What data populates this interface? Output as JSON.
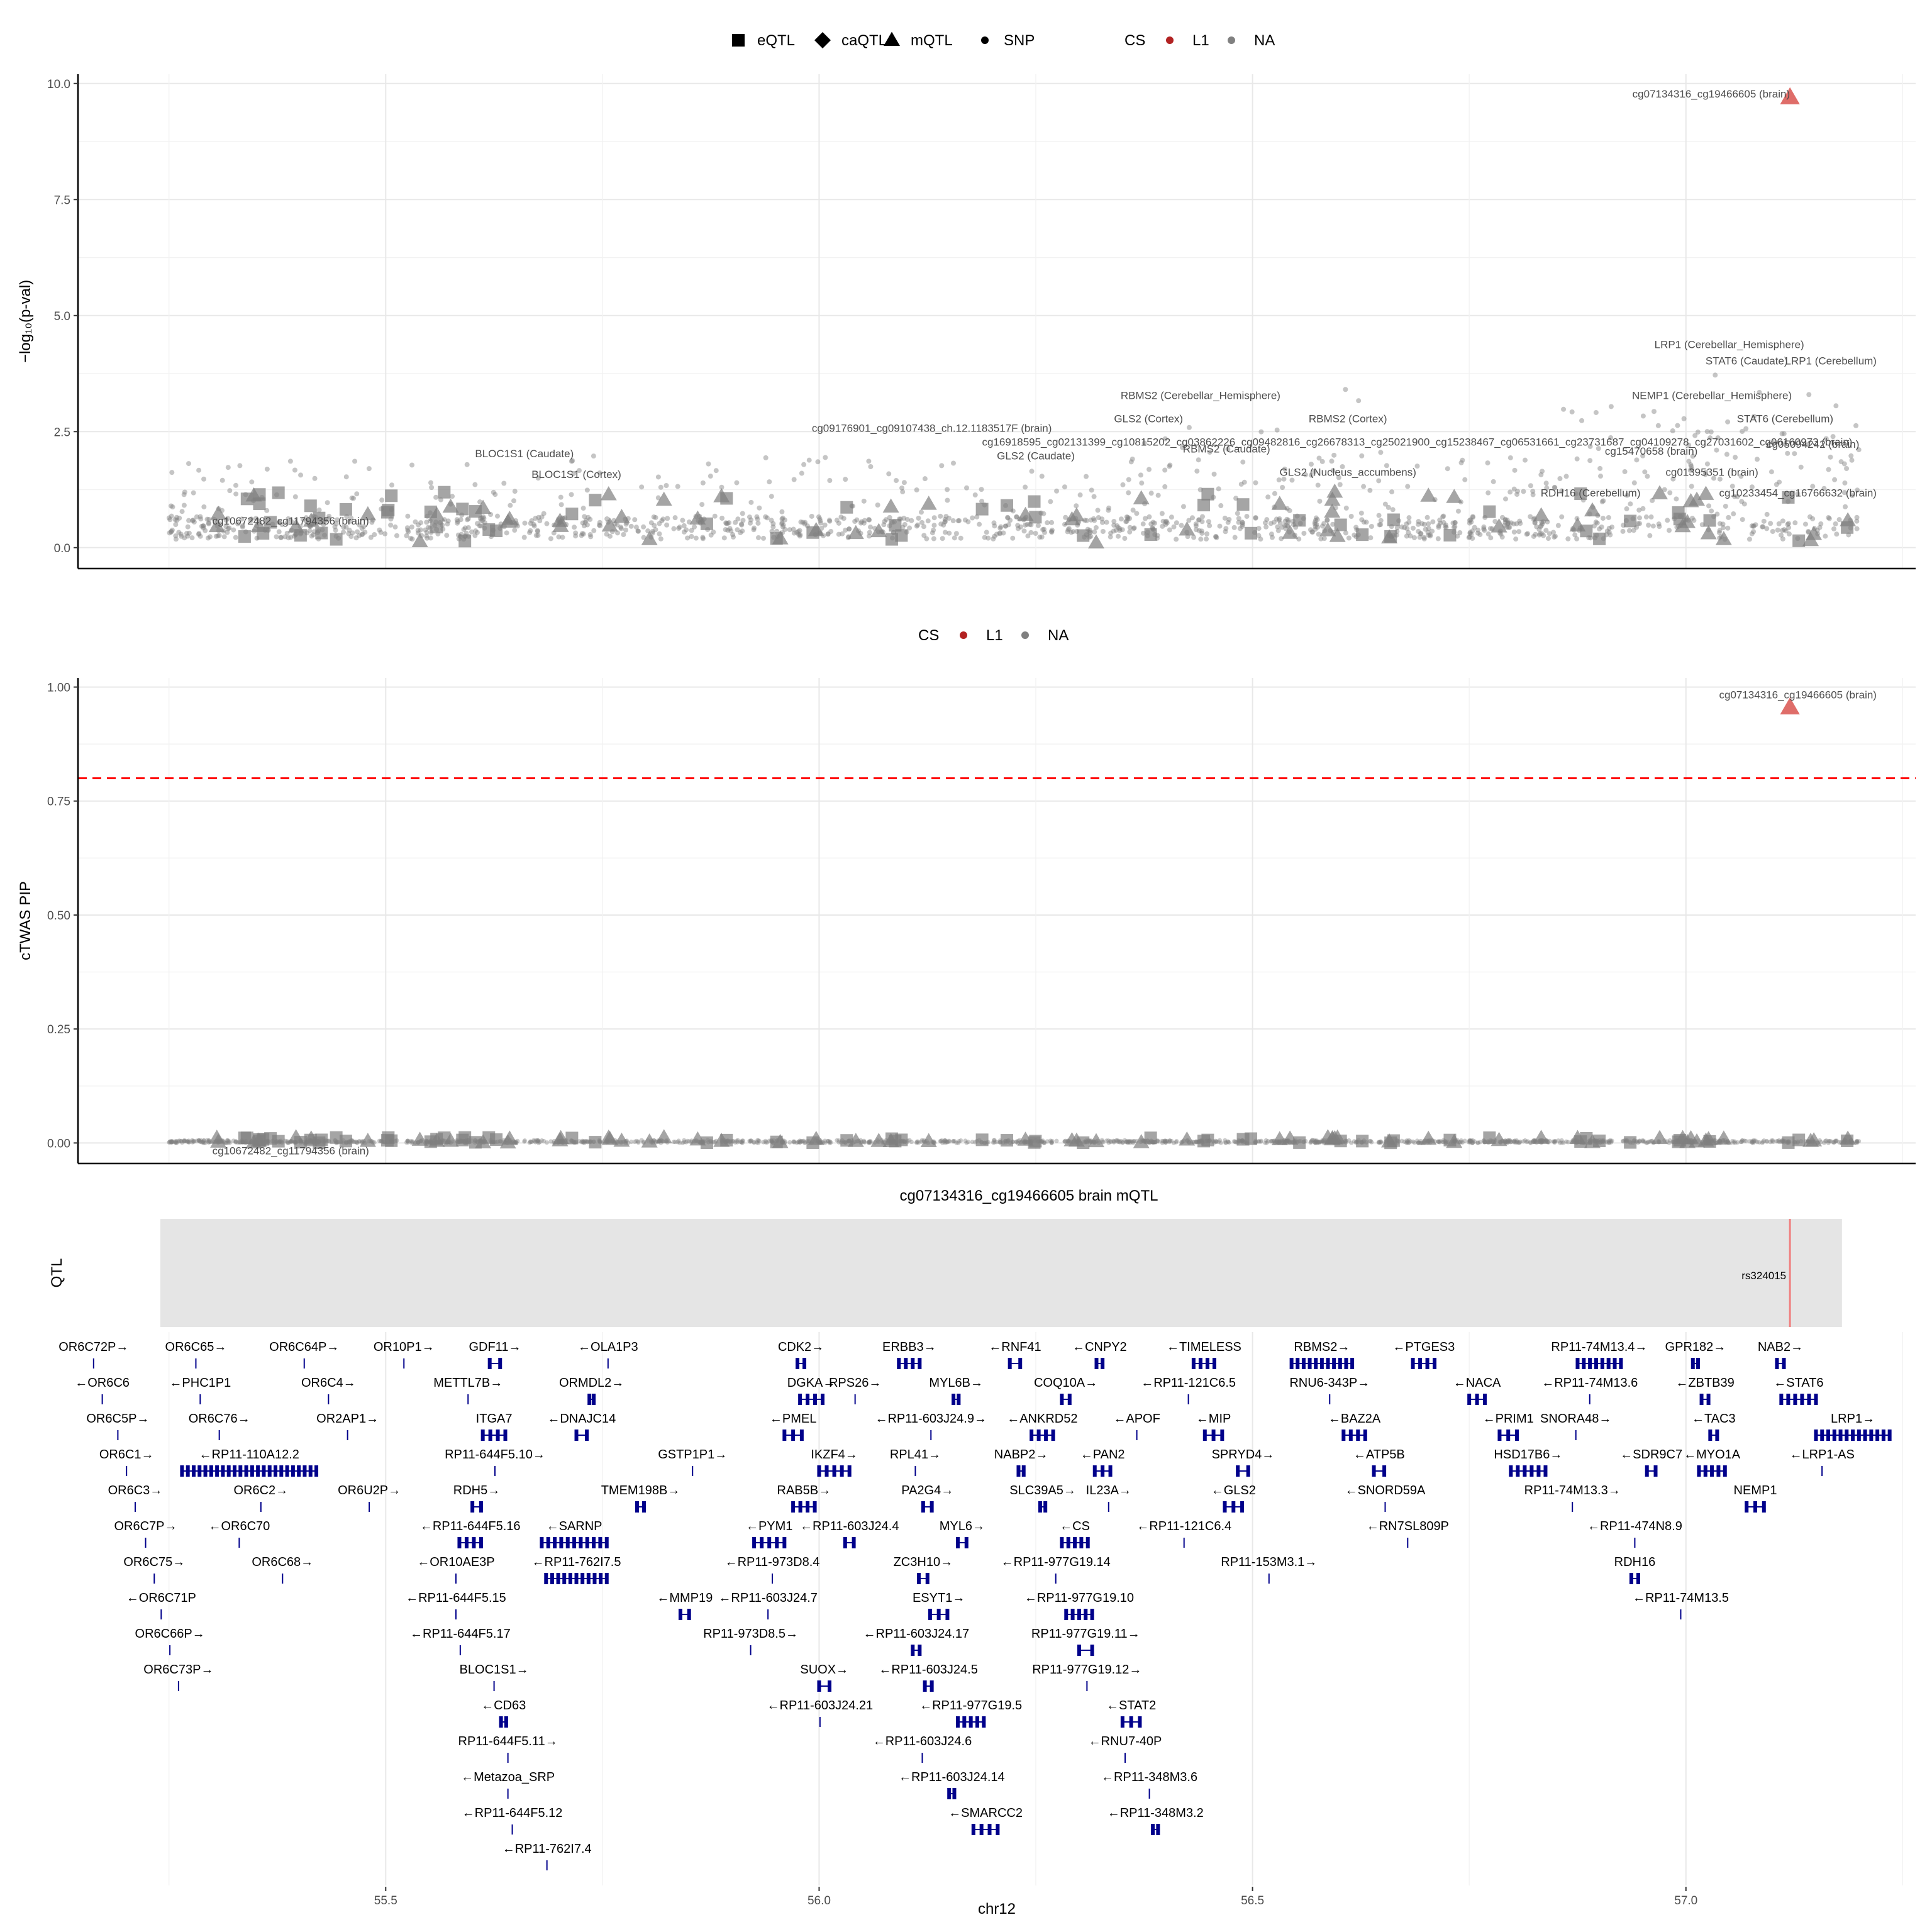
{
  "legend_top": {
    "shape_items": [
      {
        "label": "eQTL",
        "shape": "square"
      },
      {
        "label": "caQTL",
        "shape": "diamond"
      },
      {
        "label": "mQTL",
        "shape": "triangle"
      },
      {
        "label": "SNP",
        "shape": "dot"
      }
    ],
    "cs_title": "CS",
    "cs_items": [
      {
        "label": "L1",
        "color": "#b22222"
      },
      {
        "label": "NA",
        "color": "#808080"
      }
    ]
  },
  "legend_mid": {
    "cs_title": "CS",
    "cs_items": [
      {
        "label": "L1",
        "color": "#b22222"
      },
      {
        "label": "NA",
        "color": "#808080"
      }
    ]
  },
  "colors": {
    "cs_l1": "#d9534f",
    "na": "#7f7f7f",
    "gene": "#00008b",
    "threshold": "#ff0000",
    "qtl_marker": "#f08080",
    "panel_bg": "#e5e5e5"
  },
  "chart_data": [
    {
      "type": "scatter",
      "ylabel": "−log₁₀(p-val)",
      "ylim": [
        -0.45,
        10.2
      ],
      "xlim": [
        55.145,
        57.265
      ],
      "yticks": [
        "0.0",
        "2.5",
        "5.0",
        "7.5",
        "10.0"
      ],
      "highlighted": [
        {
          "x": 57.12,
          "y": 9.7,
          "type": "mQTL",
          "cs": "L1",
          "label": "cg07134316_cg19466605 (brain)"
        }
      ],
      "labels": [
        {
          "text": "cg07134316_cg19466605 (brain)",
          "x": 57.12,
          "y": 9.7
        },
        {
          "text": "LRP1 (Cerebellar_Hemisphere)",
          "x": 57.05,
          "y": 4.3
        },
        {
          "text": "STAT6 (Caudate)",
          "x": 57.07,
          "y": 3.95
        },
        {
          "text": "LRP1 (Cerebellum)",
          "x": 57.22,
          "y": 3.95
        },
        {
          "text": "NEMP1 (Cerebellar_Hemisphere)",
          "x": 57.03,
          "y": 3.2
        },
        {
          "text": "STAT6 (Cerebellum)",
          "x": 57.17,
          "y": 2.7
        },
        {
          "text": "RBMS2 (Cerebellar_Hemisphere)",
          "x": 56.44,
          "y": 3.2
        },
        {
          "text": "GLS2 (Cortex)",
          "x": 56.38,
          "y": 2.7
        },
        {
          "text": "RBMS2 (Cortex)",
          "x": 56.61,
          "y": 2.7
        },
        {
          "text": "cg09176901_cg09107438_ch.12.1183517F (brain)",
          "x": 56.13,
          "y": 2.5
        },
        {
          "text": "cg16918595_cg02131399_cg10815202_cg03862226_cg09482816_cg26678313_cg25021900_cg15238467_cg06531661_cg23731687_cg04109278_cg27031602_cg06160973 (brain)",
          "x": 56.69,
          "y": 2.2
        },
        {
          "text": "cg05094242 (brain)",
          "x": 57.2,
          "y": 2.15
        },
        {
          "text": "RBMS2 (Caudate)",
          "x": 56.47,
          "y": 2.05
        },
        {
          "text": "GLS2 (Caudate)",
          "x": 56.25,
          "y": 1.9
        },
        {
          "text": "cg15470658 (brain)",
          "x": 56.96,
          "y": 2.0
        },
        {
          "text": "BLOC1S1 (Caudate)",
          "x": 55.66,
          "y": 1.95
        },
        {
          "text": "BLOC1S1 (Cortex)",
          "x": 55.72,
          "y": 1.5
        },
        {
          "text": "GLS2 (Nucleus_accumbens)",
          "x": 56.61,
          "y": 1.55
        },
        {
          "text": "cg01395351 (brain)",
          "x": 57.03,
          "y": 1.55
        },
        {
          "text": "RDH16 (Cerebellum)",
          "x": 56.89,
          "y": 1.1
        },
        {
          "text": "cg10233454_cg16766632 (brain)",
          "x": 57.22,
          "y": 1.1
        },
        {
          "text": "cg10672482_cg11794356 (brain)",
          "x": 55.3,
          "y": 0.5
        }
      ]
    },
    {
      "type": "scatter",
      "ylabel": "cTWAS PIP",
      "ylim": [
        -0.045,
        1.02
      ],
      "xlim": [
        55.145,
        57.265
      ],
      "yticks": [
        "0.00",
        "0.25",
        "0.50",
        "0.75",
        "1.00"
      ],
      "threshold": 0.8,
      "highlighted": [
        {
          "x": 57.12,
          "y": 0.955,
          "type": "mQTL",
          "cs": "L1",
          "label": "cg07134316_cg19466605 (brain)"
        }
      ],
      "labels": [
        {
          "text": "cg07134316_cg19466605 (brain)",
          "x": 57.22,
          "y": 0.975
        },
        {
          "text": "cg10672482_cg11794356 (brain)",
          "x": 55.3,
          "y": -0.025
        }
      ]
    },
    {
      "type": "table",
      "title": "cg07134316_cg19466605 brain mQTL",
      "ylabel": "QTL",
      "xlabel": "chr12",
      "xticks": [
        "55.5",
        "56.0",
        "56.5",
        "57.0"
      ],
      "xtick_values": [
        55.5,
        56.0,
        56.5,
        57.0
      ],
      "qtl_range": [
        55.24,
        57.18
      ],
      "snp": {
        "name": "rs324015",
        "x": 57.12
      },
      "genes": [
        {
          "n": "OR6C72P→",
          "x": 55.162,
          "r": 0,
          "w": 0.002
        },
        {
          "n": "OR6C65→",
          "x": 55.28,
          "r": 0,
          "w": 0.002
        },
        {
          "n": "OR6C64P→",
          "x": 55.405,
          "r": 0,
          "w": 0.002
        },
        {
          "n": "OR10P1→",
          "x": 55.52,
          "r": 0,
          "w": 0.002
        },
        {
          "n": "GDF11→",
          "x": 55.62,
          "r": 0,
          "w": 0.012
        },
        {
          "n": "←OLA1P3",
          "x": 55.755,
          "r": 0,
          "w": 0.003
        },
        {
          "n": "CDK2→",
          "x": 55.975,
          "r": 0,
          "w": 0.008
        },
        {
          "n": "ERBB3→",
          "x": 56.092,
          "r": 0,
          "w": 0.024
        },
        {
          "n": "←RNF41",
          "x": 56.22,
          "r": 0,
          "w": 0.012
        },
        {
          "n": "←CNPY2",
          "x": 56.32,
          "r": 0,
          "w": 0.007
        },
        {
          "n": "←TIMELESS",
          "x": 56.432,
          "r": 0,
          "w": 0.024
        },
        {
          "n": "RBMS2→",
          "x": 56.545,
          "r": 0,
          "w": 0.07
        },
        {
          "n": "←PTGES3",
          "x": 56.685,
          "r": 0,
          "w": 0.025
        },
        {
          "n": "RP11-74M13.4→",
          "x": 56.875,
          "r": 0,
          "w": 0.05
        },
        {
          "n": "GPR182→",
          "x": 57.008,
          "r": 0,
          "w": 0.006
        },
        {
          "n": "NAB2→",
          "x": 57.105,
          "r": 0,
          "w": 0.008
        },
        {
          "n": "←OR6C6",
          "x": 55.172,
          "r": 1,
          "w": 0.002
        },
        {
          "n": "←PHC1P1",
          "x": 55.285,
          "r": 1,
          "w": 0.002
        },
        {
          "n": "OR6C4→",
          "x": 55.433,
          "r": 1,
          "w": 0.002
        },
        {
          "n": "METTL7B→",
          "x": 55.593,
          "r": 1,
          "w": 0.004
        },
        {
          "n": "ORMDL2→",
          "x": 55.735,
          "r": 1,
          "w": 0.005
        },
        {
          "n": "DGKA→",
          "x": 55.978,
          "r": 1,
          "w": 0.026
        },
        {
          "n": "RPS26→",
          "x": 56.04,
          "r": 1,
          "w": 0.003
        },
        {
          "n": "MYL6B→",
          "x": 56.155,
          "r": 1,
          "w": 0.006
        },
        {
          "n": "COQ10A→",
          "x": 56.28,
          "r": 1,
          "w": 0.009
        },
        {
          "n": "←RP11-121C6.5",
          "x": 56.425,
          "r": 1,
          "w": 0.002
        },
        {
          "n": "RNU6-343P→",
          "x": 56.588,
          "r": 1,
          "w": 0.002
        },
        {
          "n": "←NACA",
          "x": 56.75,
          "r": 1,
          "w": 0.018
        },
        {
          "n": "←RP11-74M13.6",
          "x": 56.888,
          "r": 1,
          "w": 0.002
        },
        {
          "n": "←ZBTB39",
          "x": 57.018,
          "r": 1,
          "w": 0.008
        },
        {
          "n": "←STAT6",
          "x": 57.11,
          "r": 1,
          "w": 0.04
        },
        {
          "n": "OR6C5P→",
          "x": 55.19,
          "r": 2,
          "w": 0.002
        },
        {
          "n": "OR6C76→",
          "x": 55.307,
          "r": 2,
          "w": 0.002
        },
        {
          "n": "OR2AP1→",
          "x": 55.455,
          "r": 2,
          "w": 0.002
        },
        {
          "n": "ITGA7",
          "x": 55.612,
          "r": 2,
          "w": 0.026
        },
        {
          "n": "←DNAJC14",
          "x": 55.72,
          "r": 2,
          "w": 0.012
        },
        {
          "n": "←PMEL",
          "x": 55.96,
          "r": 2,
          "w": 0.02
        },
        {
          "n": "←RP11-603J24.9→",
          "x": 56.128,
          "r": 2,
          "w": 0.002
        },
        {
          "n": "←ANKRD52",
          "x": 56.245,
          "r": 2,
          "w": 0.025
        },
        {
          "n": "←APOF",
          "x": 56.365,
          "r": 2,
          "w": 0.003
        },
        {
          "n": "←MIP",
          "x": 56.445,
          "r": 2,
          "w": 0.02
        },
        {
          "n": "←BAZ2A",
          "x": 56.605,
          "r": 2,
          "w": 0.025
        },
        {
          "n": "←PRIM1",
          "x": 56.785,
          "r": 2,
          "w": 0.02
        },
        {
          "n": "SNORA48→",
          "x": 56.872,
          "r": 2,
          "w": 0.002
        },
        {
          "n": "←TAC3",
          "x": 57.028,
          "r": 2,
          "w": 0.008
        },
        {
          "n": "LRP1→",
          "x": 57.15,
          "r": 2,
          "w": 0.085
        },
        {
          "n": "OR6C1→",
          "x": 55.2,
          "r": 3,
          "w": 0.002
        },
        {
          "n": "←RP11-110A12.2",
          "x": 55.265,
          "r": 3,
          "w": 0.155
        },
        {
          "n": "RP11-644F5.10→",
          "x": 55.625,
          "r": 3,
          "w": 0.002
        },
        {
          "n": "GSTP1P1→",
          "x": 55.853,
          "r": 3,
          "w": 0.002
        },
        {
          "n": "IKZF4→",
          "x": 56.0,
          "r": 3,
          "w": 0.035
        },
        {
          "n": "RPL41→",
          "x": 56.11,
          "r": 3,
          "w": 0.002
        },
        {
          "n": "NABP2→",
          "x": 56.23,
          "r": 3,
          "w": 0.006
        },
        {
          "n": "←PAN2",
          "x": 56.318,
          "r": 3,
          "w": 0.018
        },
        {
          "n": "SPRYD4→",
          "x": 56.483,
          "r": 3,
          "w": 0.012
        },
        {
          "n": "←ATP5B",
          "x": 56.64,
          "r": 3,
          "w": 0.012
        },
        {
          "n": "HSD17B6→",
          "x": 56.798,
          "r": 3,
          "w": 0.04
        },
        {
          "n": "←SDR9C7",
          "x": 56.955,
          "r": 3,
          "w": 0.01
        },
        {
          "n": "←MYO1A",
          "x": 57.015,
          "r": 3,
          "w": 0.03
        },
        {
          "n": "←LRP1-AS",
          "x": 57.155,
          "r": 3,
          "w": 0.004
        },
        {
          "n": "OR6C3→",
          "x": 55.21,
          "r": 4,
          "w": 0.002
        },
        {
          "n": "OR6C2→",
          "x": 55.355,
          "r": 4,
          "w": 0.002
        },
        {
          "n": "OR6U2P→",
          "x": 55.48,
          "r": 4,
          "w": 0.002
        },
        {
          "n": "RDH5→",
          "x": 55.6,
          "r": 4,
          "w": 0.01
        },
        {
          "n": "TMEM198B→",
          "x": 55.79,
          "r": 4,
          "w": 0.008
        },
        {
          "n": "RAB5B→",
          "x": 55.97,
          "r": 4,
          "w": 0.025
        },
        {
          "n": "PA2G4→",
          "x": 56.12,
          "r": 4,
          "w": 0.01
        },
        {
          "n": "SLC39A5→",
          "x": 56.255,
          "r": 4,
          "w": 0.006
        },
        {
          "n": "IL23A→",
          "x": 56.332,
          "r": 4,
          "w": 0.004
        },
        {
          "n": "←GLS2",
          "x": 56.468,
          "r": 4,
          "w": 0.02
        },
        {
          "n": "←SNORD59A",
          "x": 56.652,
          "r": 4,
          "w": 0.002
        },
        {
          "n": "RP11-74M13.3→",
          "x": 56.868,
          "r": 4,
          "w": 0.002
        },
        {
          "n": "NEMP1",
          "x": 57.07,
          "r": 4,
          "w": 0.02
        },
        {
          "n": "OR6C7P→",
          "x": 55.222,
          "r": 5,
          "w": 0.002
        },
        {
          "n": "←OR6C70",
          "x": 55.33,
          "r": 5,
          "w": 0.002
        },
        {
          "n": "←RP11-644F5.16",
          "x": 55.585,
          "r": 5,
          "w": 0.025
        },
        {
          "n": "←SARNP",
          "x": 55.68,
          "r": 5,
          "w": 0.075
        },
        {
          "n": "←PYM1",
          "x": 55.925,
          "r": 5,
          "w": 0.035
        },
        {
          "n": "←RP11-603J24.4",
          "x": 56.03,
          "r": 5,
          "w": 0.01
        },
        {
          "n": "MYL6→",
          "x": 56.16,
          "r": 5,
          "w": 0.01
        },
        {
          "n": "←CS",
          "x": 56.28,
          "r": 5,
          "w": 0.03
        },
        {
          "n": "←RP11-121C6.4",
          "x": 56.42,
          "r": 5,
          "w": 0.002
        },
        {
          "n": "←RN7SL809P",
          "x": 56.678,
          "r": 5,
          "w": 0.002
        },
        {
          "n": "←RP11-474N8.9",
          "x": 56.94,
          "r": 5,
          "w": 0.002
        },
        {
          "n": "OR6C75→",
          "x": 55.232,
          "r": 6,
          "w": 0.002
        },
        {
          "n": "OR6C68→",
          "x": 55.38,
          "r": 6,
          "w": 0.002
        },
        {
          "n": "←OR10AE3P",
          "x": 55.58,
          "r": 6,
          "w": 0.002
        },
        {
          "n": "←RP11-762I7.5",
          "x": 55.685,
          "r": 6,
          "w": 0.07
        },
        {
          "n": "←RP11-973D8.4",
          "x": 55.945,
          "r": 6,
          "w": 0.002
        },
        {
          "n": "ZC3H10→",
          "x": 56.115,
          "r": 6,
          "w": 0.01
        },
        {
          "n": "←RP11-977G19.14",
          "x": 56.272,
          "r": 6,
          "w": 0.002
        },
        {
          "n": "RP11-153M3.1→",
          "x": 56.518,
          "r": 6,
          "w": 0.002
        },
        {
          "n": "RDH16",
          "x": 56.937,
          "r": 6,
          "w": 0.008
        },
        {
          "n": "←OR6C71P",
          "x": 55.24,
          "r": 7,
          "w": 0.002
        },
        {
          "n": "←RP11-644F5.15",
          "x": 55.58,
          "r": 7,
          "w": 0.002
        },
        {
          "n": "←MMP19",
          "x": 55.84,
          "r": 7,
          "w": 0.01
        },
        {
          "n": "←RP11-603J24.7",
          "x": 55.94,
          "r": 7,
          "w": 0.002
        },
        {
          "n": "ESYT1→",
          "x": 56.128,
          "r": 7,
          "w": 0.02
        },
        {
          "n": "←RP11-977G19.10",
          "x": 56.285,
          "r": 7,
          "w": 0.03
        },
        {
          "n": "←RP11-74M13.5",
          "x": 56.993,
          "r": 7,
          "w": 0.002
        },
        {
          "n": "OR6C66P→",
          "x": 55.25,
          "r": 8,
          "w": 0.002
        },
        {
          "n": "←RP11-644F5.17",
          "x": 55.585,
          "r": 8,
          "w": 0.002
        },
        {
          "n": "RP11-973D8.5→",
          "x": 55.92,
          "r": 8,
          "w": 0.002
        },
        {
          "n": "←RP11-603J24.17",
          "x": 56.108,
          "r": 8,
          "w": 0.008
        },
        {
          "n": "RP11-977G19.11→",
          "x": 56.3,
          "r": 8,
          "w": 0.015
        },
        {
          "n": "OR6C73P→",
          "x": 55.26,
          "r": 9,
          "w": 0.002
        },
        {
          "n": "BLOC1S1→",
          "x": 55.624,
          "r": 9,
          "w": 0.002
        },
        {
          "n": "SUOX→",
          "x": 56.0,
          "r": 9,
          "w": 0.012
        },
        {
          "n": "←RP11-603J24.5",
          "x": 56.122,
          "r": 9,
          "w": 0.008
        },
        {
          "n": "RP11-977G19.12→",
          "x": 56.308,
          "r": 9,
          "w": 0.002
        },
        {
          "n": "←CD63",
          "x": 55.633,
          "r": 10,
          "w": 0.006
        },
        {
          "n": "←RP11-603J24.21",
          "x": 56.0,
          "r": 10,
          "w": 0.002
        },
        {
          "n": "←RP11-977G19.5",
          "x": 56.16,
          "r": 10,
          "w": 0.03
        },
        {
          "n": "←STAT2",
          "x": 56.35,
          "r": 10,
          "w": 0.02
        },
        {
          "n": "RP11-644F5.11→",
          "x": 55.64,
          "r": 11,
          "w": 0.002
        },
        {
          "n": "←RP11-603J24.6",
          "x": 56.118,
          "r": 11,
          "w": 0.002
        },
        {
          "n": "←RNU7-40P",
          "x": 56.352,
          "r": 11,
          "w": 0.002
        },
        {
          "n": "←Metazoa_SRP",
          "x": 55.64,
          "r": 12,
          "w": 0.002
        },
        {
          "n": "←RP11-603J24.14",
          "x": 56.15,
          "r": 12,
          "w": 0.006
        },
        {
          "n": "←RP11-348M3.6",
          "x": 56.38,
          "r": 12,
          "w": 0.002
        },
        {
          "n": "←RP11-644F5.12",
          "x": 55.645,
          "r": 13,
          "w": 0.002
        },
        {
          "n": "←SMARCC2",
          "x": 56.178,
          "r": 13,
          "w": 0.028
        },
        {
          "n": "←RP11-348M3.2",
          "x": 56.385,
          "r": 13,
          "w": 0.006
        },
        {
          "n": "←RP11-762I7.4",
          "x": 55.685,
          "r": 14,
          "w": 0.002
        }
      ]
    }
  ]
}
